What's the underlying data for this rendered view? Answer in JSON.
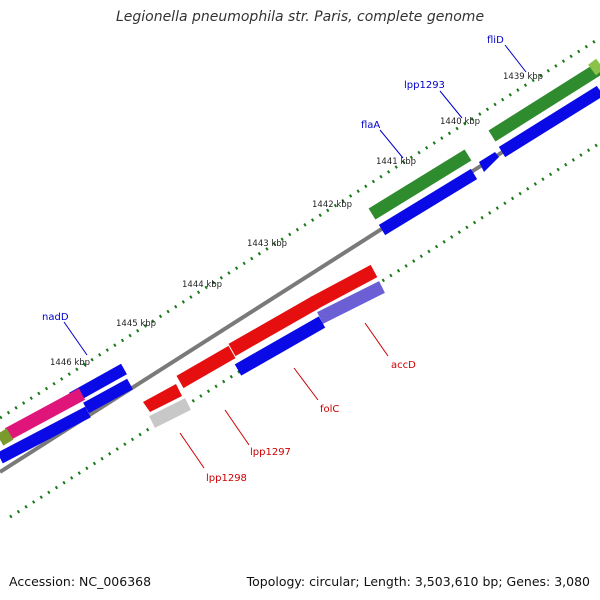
{
  "title": "Legionella pneumophila str. Paris, complete genome",
  "footer": {
    "accession": "Accession: NC_006368",
    "summary": "Topology: circular; Length: 3,503,610 bp; Genes: 3,080"
  },
  "ticks": [
    "1439 kbp",
    "1440 kbp",
    "1441 kbp",
    "1442 kbp",
    "1443 kbp",
    "1444 kbp",
    "1445 kbp",
    "1446 kbp"
  ],
  "forward_genes": [
    "fliD",
    "lpp1293",
    "flaA",
    "nadD"
  ],
  "reverse_genes": [
    "accD",
    "folC",
    "lpp1297",
    "lpp1298"
  ],
  "colors": {
    "forward_label": "#0000cc",
    "reverse_label": "#cc0000",
    "green_feature": "#2e8b2e",
    "blue_cds": "#0a0ae6",
    "red_feature": "#e60f0f",
    "magenta_feature": "#e0157a",
    "purple_feature": "#6b5fd6",
    "grey_feature": "#c8c8c8",
    "backbone": "#808080",
    "dots": "#1a7a1a"
  }
}
